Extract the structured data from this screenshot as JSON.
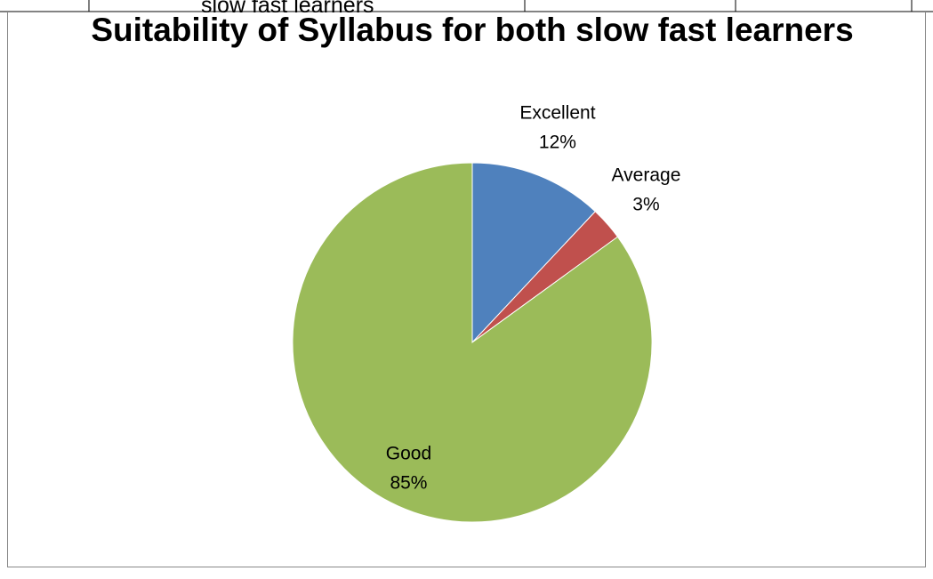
{
  "background_text": "slow fast learners",
  "chart_data": {
    "type": "pie",
    "title": "Suitability of Syllabus for both slow fast learners",
    "categories": [
      "Excellent",
      "Average",
      "Good"
    ],
    "values": [
      12,
      3,
      85
    ],
    "value_labels": [
      "12%",
      "3%",
      "85%"
    ],
    "colors": [
      "#4f81bd",
      "#c0504d",
      "#9bbb59"
    ]
  }
}
